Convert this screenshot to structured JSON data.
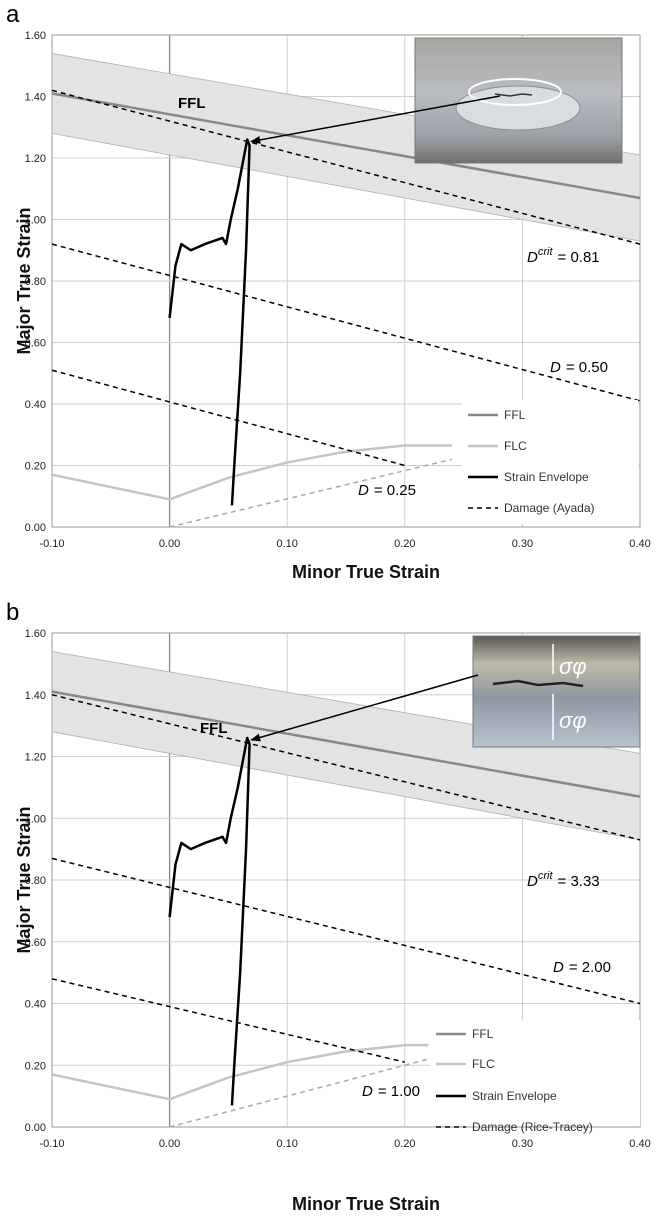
{
  "chart_data": [
    {
      "type": "line",
      "panel": "a",
      "x_label": "Minor True Strain",
      "y_label": "Major True Strain",
      "xlim": [
        -0.1,
        0.4
      ],
      "ylim": [
        0,
        1.6
      ],
      "xticks": [
        {
          "value": -0.1,
          "label": "-0.10"
        },
        {
          "value": 0,
          "label": "0.00"
        },
        {
          "value": 0.1,
          "label": "0.10"
        },
        {
          "value": 0.2,
          "label": "0.20"
        },
        {
          "value": 0.3,
          "label": "0.30"
        },
        {
          "value": 0.4,
          "label": "0.40"
        }
      ],
      "yticks": [
        {
          "value": 0,
          "label": "0.00"
        },
        {
          "value": 0.2,
          "label": "0.20"
        },
        {
          "value": 0.4,
          "label": "0.40"
        },
        {
          "value": 0.6,
          "label": "0.60"
        },
        {
          "value": 0.8,
          "label": "0.80"
        },
        {
          "value": 1.0,
          "label": "1.00"
        },
        {
          "value": 1.2,
          "label": "1.20"
        },
        {
          "value": 1.4,
          "label": "1.40"
        },
        {
          "value": 1.6,
          "label": "1.60"
        }
      ],
      "grid": true,
      "band": {
        "color": "#e3e3e3",
        "x": [
          -0.1,
          0.4
        ],
        "upper": [
          1.54,
          1.21
        ],
        "lower": [
          1.28,
          0.93
        ]
      },
      "series": [
        {
          "name": "FFL",
          "color": "#888888",
          "dash": "none",
          "width": 2.5,
          "x": [
            -0.1,
            0.4
          ],
          "values": [
            1.41,
            1.07
          ]
        },
        {
          "name": "FLC",
          "color": "#c4c4c4",
          "dash": "none",
          "width": 2.5,
          "x": [
            -0.1,
            0,
            0.05,
            0.1,
            0.15,
            0.2,
            0.24
          ],
          "values": [
            0.17,
            0.09,
            0.16,
            0.21,
            0.245,
            0.265,
            0.265
          ]
        },
        {
          "color": "#aaaaaa",
          "dash": "5,4",
          "width": 1.5,
          "x": [
            0,
            0.24
          ],
          "values": [
            0,
            0.22
          ]
        },
        {
          "name": "Strain Envelope",
          "color": "#000000",
          "dash": "none",
          "width": 2.5,
          "x": [
            0,
            0.005,
            0.01,
            0.018,
            0.03,
            0.045,
            0.048,
            0.052,
            0.058,
            0.063,
            0.066,
            0.068,
            0.065,
            0.06,
            0.055,
            0.053
          ],
          "values": [
            0.68,
            0.85,
            0.92,
            0.9,
            0.92,
            0.94,
            0.92,
            1.0,
            1.1,
            1.2,
            1.26,
            1.24,
            0.9,
            0.5,
            0.2,
            0.07
          ]
        },
        {
          "name": "Damage (Ayada)",
          "color": "#000000",
          "dash": "5,4",
          "width": 1.5,
          "x": [
            -0.1,
            0.4
          ],
          "values": [
            1.42,
            0.92
          ]
        },
        {
          "color": "#000000",
          "dash": "5,4",
          "width": 1.5,
          "x": [
            -0.1,
            0.4
          ],
          "values": [
            0.92,
            0.41
          ]
        },
        {
          "color": "#000000",
          "dash": "5,4",
          "width": 1.5,
          "x": [
            -0.1,
            0.2
          ],
          "values": [
            0.51,
            0.2
          ]
        }
      ],
      "annotations": [
        {
          "text": "FFL"
        },
        {
          "text": "D",
          "sup": "crit",
          "rest": "= 0.81"
        },
        {
          "text": "D",
          "rest": "= 0.50"
        },
        {
          "text": "D",
          "rest": "= 0.25"
        }
      ]
    },
    {
      "type": "line",
      "panel": "b",
      "x_label": "Minor True Strain",
      "y_label": "Major True Strain",
      "xlim": [
        -0.1,
        0.4
      ],
      "ylim": [
        0,
        1.6
      ],
      "xticks": [
        {
          "value": -0.1,
          "label": "-0.10"
        },
        {
          "value": 0,
          "label": "0.00"
        },
        {
          "value": 0.1,
          "label": "0.10"
        },
        {
          "value": 0.2,
          "label": "0.20"
        },
        {
          "value": 0.3,
          "label": "0.30"
        },
        {
          "value": 0.4,
          "label": "0.40"
        }
      ],
      "yticks": [
        {
          "value": 0,
          "label": "0.00"
        },
        {
          "value": 0.2,
          "label": "0.20"
        },
        {
          "value": 0.4,
          "label": "0.40"
        },
        {
          "value": 0.6,
          "label": "0.60"
        },
        {
          "value": 0.8,
          "label": "0.80"
        },
        {
          "value": 1.0,
          "label": "1.00"
        },
        {
          "value": 1.2,
          "label": "1.20"
        },
        {
          "value": 1.4,
          "label": "1.40"
        },
        {
          "value": 1.6,
          "label": "1.60"
        }
      ],
      "grid": true,
      "band": {
        "color": "#e3e3e3",
        "x": [
          -0.1,
          0.4
        ],
        "upper": [
          1.54,
          1.21
        ],
        "lower": [
          1.28,
          0.93
        ]
      },
      "series": [
        {
          "name": "FFL",
          "color": "#888888",
          "dash": "none",
          "width": 2.5,
          "x": [
            -0.1,
            0.4
          ],
          "values": [
            1.41,
            1.07
          ]
        },
        {
          "name": "FLC",
          "color": "#c4c4c4",
          "dash": "none",
          "width": 2.5,
          "x": [
            -0.1,
            0,
            0.05,
            0.1,
            0.15,
            0.2,
            0.22
          ],
          "values": [
            0.17,
            0.09,
            0.16,
            0.21,
            0.245,
            0.265,
            0.265
          ]
        },
        {
          "color": "#aaaaaa",
          "dash": "5,4",
          "width": 1.5,
          "x": [
            0,
            0.22
          ],
          "values": [
            0,
            0.22
          ]
        },
        {
          "name": "Strain Envelope",
          "color": "#000000",
          "dash": "none",
          "width": 2.5,
          "x": [
            0,
            0.005,
            0.01,
            0.018,
            0.03,
            0.045,
            0.048,
            0.052,
            0.058,
            0.063,
            0.066,
            0.068,
            0.065,
            0.06,
            0.055,
            0.053
          ],
          "values": [
            0.68,
            0.85,
            0.92,
            0.9,
            0.92,
            0.94,
            0.92,
            1.0,
            1.1,
            1.2,
            1.26,
            1.24,
            0.9,
            0.5,
            0.2,
            0.07
          ]
        },
        {
          "name": "Damage (Rice-Tracey)",
          "color": "#000000",
          "dash": "5,4",
          "width": 1.5,
          "x": [
            -0.1,
            0.4
          ],
          "values": [
            1.4,
            0.93
          ]
        },
        {
          "color": "#000000",
          "dash": "5,4",
          "width": 1.5,
          "x": [
            -0.1,
            0.4
          ],
          "values": [
            0.87,
            0.4
          ]
        },
        {
          "color": "#000000",
          "dash": "5,4",
          "width": 1.5,
          "x": [
            -0.1,
            0.2
          ],
          "values": [
            0.48,
            0.21
          ]
        }
      ],
      "annotations": [
        {
          "text": "FFL"
        },
        {
          "text": "D",
          "sup": "crit",
          "rest": "= 3.33"
        },
        {
          "text": "D",
          "rest": "= 2.00"
        },
        {
          "text": "D",
          "rest": "= 1.00"
        }
      ],
      "inset_labels": [
        "σφ",
        "σφ"
      ]
    }
  ]
}
